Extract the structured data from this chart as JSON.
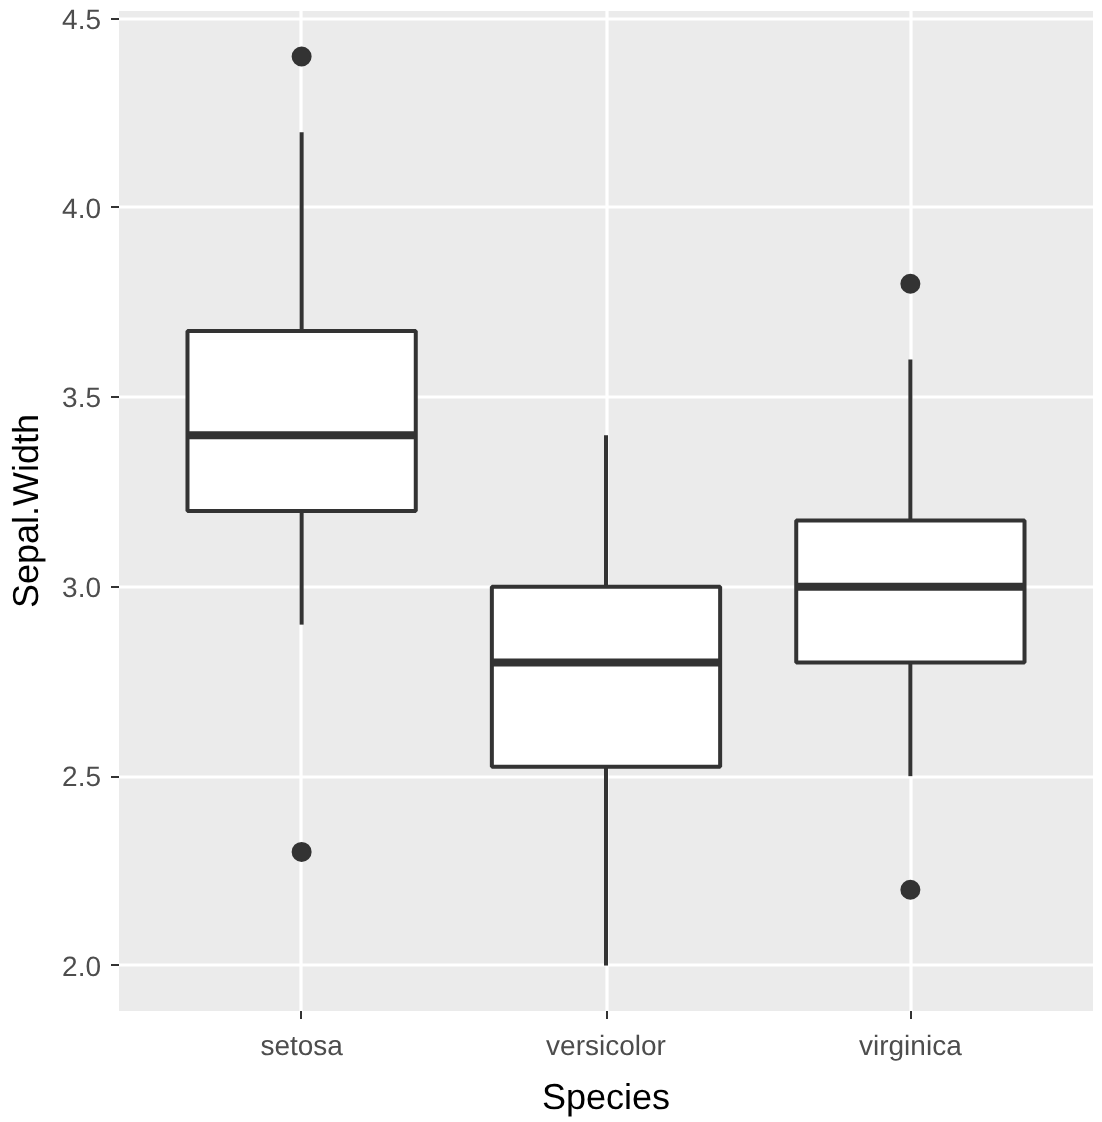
{
  "chart_data": {
    "type": "box",
    "xlabel": "Species",
    "ylabel": "Sepal.Width",
    "categories": [
      "setosa",
      "versicolor",
      "virginica"
    ],
    "boxes": [
      {
        "low": 2.9,
        "q1": 3.2,
        "median": 3.4,
        "q3": 3.675,
        "high": 4.2,
        "outliers": [
          4.4,
          2.3
        ]
      },
      {
        "low": 2.0,
        "q1": 2.525,
        "median": 2.8,
        "q3": 3.0,
        "high": 3.4
      },
      {
        "low": 2.5,
        "q1": 2.8,
        "median": 3.0,
        "q3": 3.175,
        "high": 3.6,
        "outliers": [
          3.8,
          2.2
        ]
      }
    ],
    "ylim": [
      1.88,
      4.52
    ],
    "yticks": [
      {
        "value": 2.0,
        "label": "2.0"
      },
      2.5,
      {
        "value": 3.0,
        "label": "3.0"
      },
      3.5,
      {
        "value": 4.0,
        "label": "4.0"
      },
      4.5
    ],
    "grid": true
  }
}
